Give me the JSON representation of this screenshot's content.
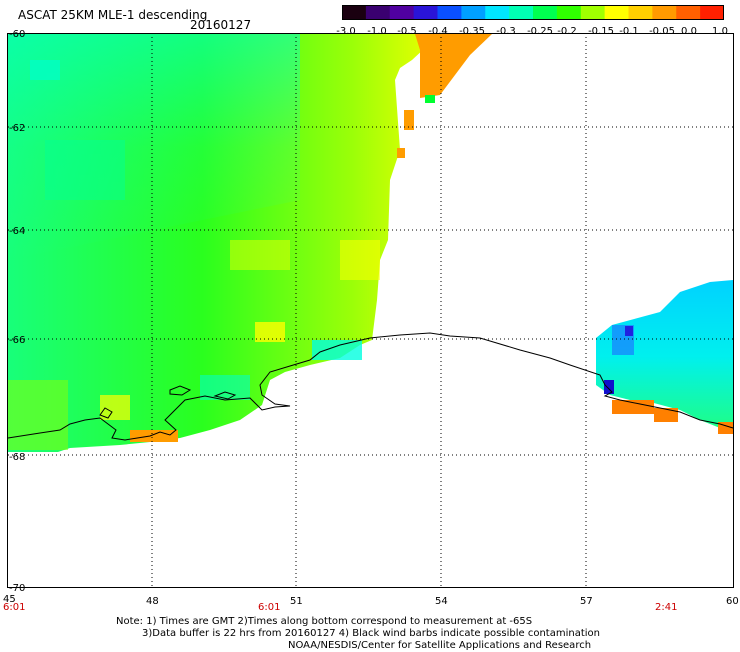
{
  "header": {
    "title": "ASCAT 25KM MLE-1 descending",
    "date": "20160127"
  },
  "colorbar": {
    "ticks": [
      "-3.0",
      "-1.0",
      "-0.5",
      "-0.4",
      "-0.35",
      "-0.3",
      "-0.25",
      "-0.2",
      "-0.15",
      "-0.1",
      "-0.05",
      "0.0",
      "1.0"
    ],
    "colors": [
      "#1a0010",
      "#3a0070",
      "#5000a0",
      "#2a14d8",
      "#0a50ff",
      "#00a0ff",
      "#00e6ff",
      "#00ffb4",
      "#00ff50",
      "#30ff00",
      "#a0ff00",
      "#ffff00",
      "#ffd000",
      "#ff9a00",
      "#ff6000",
      "#ff2000"
    ]
  },
  "map": {
    "lat_labels": [
      "-60",
      "-62",
      "-64",
      "-66",
      "-68",
      "-70"
    ],
    "lon_labels": [
      "45",
      "48",
      "51",
      "54",
      "57",
      "60"
    ],
    "time_labels": [
      "6:01",
      "6:01",
      "2:41"
    ]
  },
  "notes": {
    "line1": "Note: 1) Times are GMT 2)Times along bottom correspond to measurement at -65S",
    "line2": "3)Data buffer is 22 hrs from 20160127 4) Black wind barbs indicate possible contamination",
    "line3": "NOAA/NESDIS/Center for Satellite Applications and Research"
  }
}
